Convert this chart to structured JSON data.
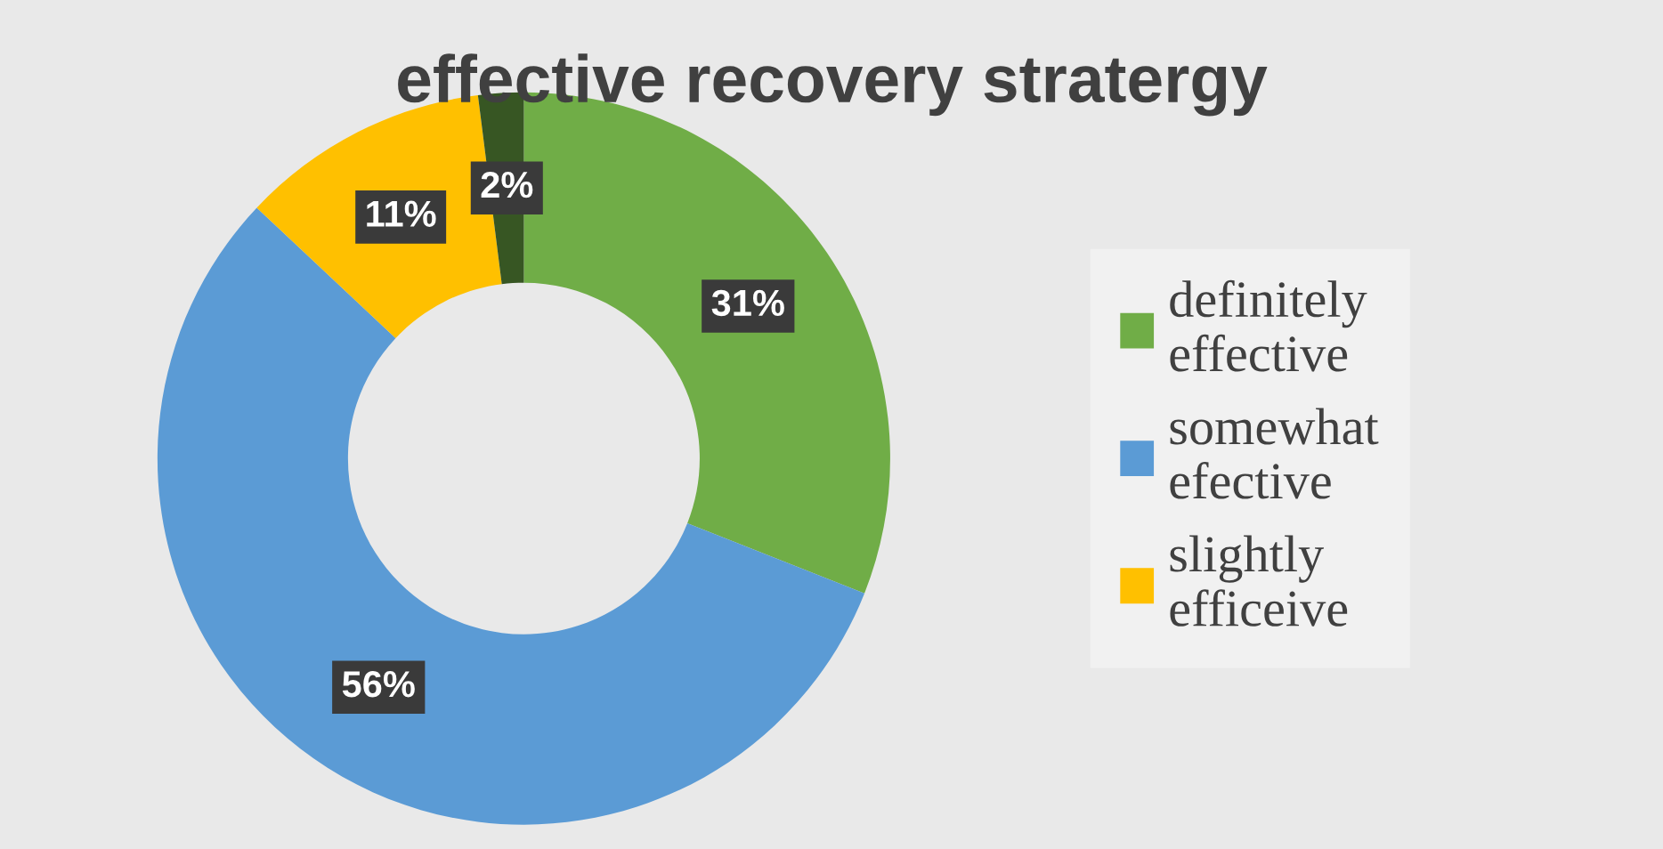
{
  "chart_data": {
    "type": "donut",
    "title": "effective recovery stratergy",
    "categories": [
      "definitely\neffective",
      "somewhat\nefective",
      "slightly\nefficeive",
      null
    ],
    "values": [
      31,
      56,
      11,
      2
    ],
    "colors": [
      "#70ad47",
      "#5b9bd5",
      "#ffc000",
      "#375623"
    ],
    "value_labels": [
      "31%",
      "56%",
      "11%",
      "2%"
    ],
    "legend": "right"
  }
}
